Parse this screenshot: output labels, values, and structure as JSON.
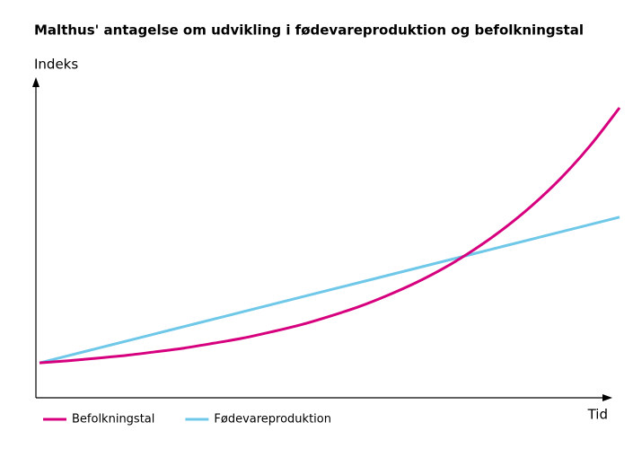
{
  "chart_data": {
    "type": "line",
    "title": "Malthus' antagelse om udvikling i fødevareproduktion og befolkningstal",
    "y_label": "Indeks",
    "x_label": "Tid",
    "x": [
      0,
      5,
      10,
      15,
      20,
      25,
      30,
      35,
      40,
      45,
      50,
      55,
      60,
      65,
      70,
      75,
      80,
      85,
      90,
      95,
      100
    ],
    "xlim": [
      0,
      100
    ],
    "ylim": [
      0,
      100
    ],
    "series": [
      {
        "name": "Befolkningstal",
        "color": "#d6007e",
        "values": [
          11,
          11.7,
          12.5,
          13.4,
          14.5,
          15.7,
          17.2,
          18.8,
          20.8,
          23.0,
          25.7,
          28.7,
          32.3,
          36.4,
          41.2,
          46.8,
          53.3,
          60.8,
          69.5,
          79.7,
          91.5
        ]
      },
      {
        "name": "Fødevareproduktion",
        "color": "#6fc8e8",
        "values": [
          11,
          13.3,
          15.6,
          17.9,
          20.2,
          22.5,
          24.8,
          27.1,
          29.4,
          31.7,
          34,
          36.3,
          38.6,
          40.9,
          43.2,
          45.5,
          47.8,
          50.1,
          52.4,
          54.7,
          57
        ]
      }
    ],
    "legend": "bottom-left"
  }
}
